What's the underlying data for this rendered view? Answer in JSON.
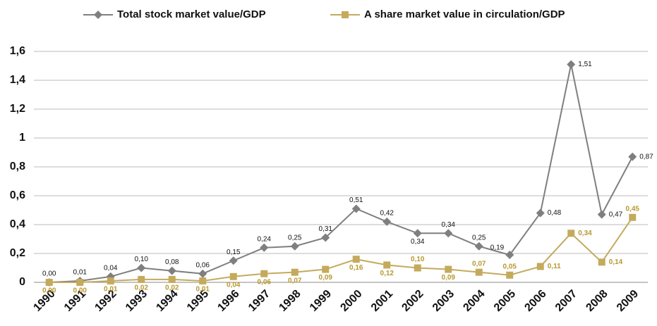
{
  "chart_data": {
    "type": "line",
    "categories": [
      "1990",
      "1991",
      "1992",
      "1993",
      "1994",
      "1995",
      "1996",
      "1997",
      "1998",
      "1999",
      "2000",
      "2001",
      "2002",
      "2003",
      "2004",
      "2005",
      "2006",
      "2007",
      "2008",
      "2009"
    ],
    "series": [
      {
        "name": "Total stock market value/GDP",
        "color": "#7f7f7f",
        "marker": "diamond",
        "values": [
          0.0,
          0.01,
          0.04,
          0.1,
          0.08,
          0.06,
          0.15,
          0.24,
          0.25,
          0.31,
          0.51,
          0.42,
          0.34,
          0.34,
          0.25,
          0.19,
          0.48,
          1.51,
          0.47,
          0.87
        ],
        "value_labels": [
          "0,00",
          "0,01",
          "0,04",
          "0,10",
          "0,08",
          "0,06",
          "0,15",
          "0,24",
          "0,25",
          "0,31",
          "0,51",
          "0,42",
          "0,34",
          "0,34",
          "0,25",
          "0,19",
          "0,48",
          "1,51",
          "0,47",
          "0,87"
        ]
      },
      {
        "name": "A share market value in circulation/GDP",
        "color": "#c4aa5c",
        "marker": "square",
        "values": [
          0.0,
          0.0,
          0.01,
          0.02,
          0.02,
          0.01,
          0.04,
          0.06,
          0.07,
          0.09,
          0.16,
          0.12,
          0.1,
          0.09,
          0.07,
          0.05,
          0.11,
          0.34,
          0.14,
          0.45
        ],
        "value_labels": [
          "0,00",
          "0,00",
          "0,01",
          "0,02",
          "0,02",
          "0,01",
          "0,04",
          "0,06",
          "0,07",
          "0,09",
          "0,16",
          "0,12",
          "0,10",
          "0,09",
          "0,07",
          "0,05",
          "0,11",
          "0,34",
          "0,14",
          "0,45"
        ]
      }
    ],
    "ylim": [
      0,
      1.6
    ],
    "yticks": [
      0,
      {
        "value": 0.2,
        "label": "0,2"
      },
      {
        "value": 0.4,
        "label": "0,4"
      },
      {
        "value": 0.6,
        "label": "0,6"
      },
      {
        "value": 0.8,
        "label": "0,8"
      },
      1,
      {
        "value": 1.2,
        "label": "1,2"
      },
      {
        "value": 1.4,
        "label": "1,4"
      },
      {
        "value": 1.6,
        "label": "1,6"
      }
    ],
    "grid": true,
    "legend": "top"
  }
}
